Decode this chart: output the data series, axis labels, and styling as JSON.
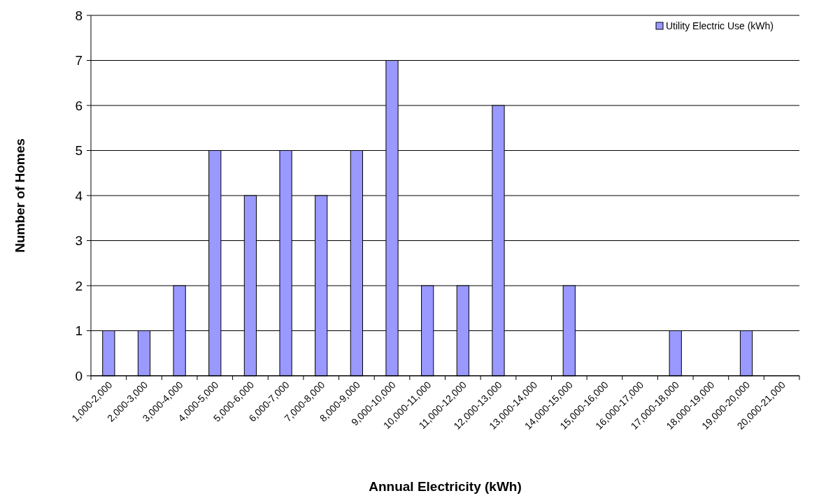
{
  "chart_data": {
    "type": "bar",
    "xlabel": "Annual Electricity (kWh)",
    "ylabel": "Number of Homes",
    "categories": [
      "1,000-2,000",
      "2,000-3,000",
      "3,000-4,000",
      "4,000-5,000",
      "5,000-6,000",
      "6,000-7,000",
      "7,000-8,000",
      "8,000-9,000",
      "9,000-10,000",
      "10,000-11,000",
      "11,000-12,000",
      "12,000-13,000",
      "13,000-14,000",
      "14,000-15,000",
      "15,000-16,000",
      "16,000-17,000",
      "17,000-18,000",
      "18,000-19,000",
      "19,000-20,000",
      "20,000-21,000"
    ],
    "series": [
      {
        "name": "Utility Electric Use (kWh)",
        "color": "#9999ff",
        "values": [
          1,
          1,
          2,
          5,
          4,
          5,
          4,
          5,
          7,
          2,
          2,
          6,
          0,
          2,
          0,
          0,
          1,
          0,
          1,
          0
        ]
      }
    ],
    "ylim": [
      0,
      8
    ],
    "yticks": [
      0,
      1,
      2,
      3,
      4,
      5,
      6,
      7,
      8
    ],
    "grid": "y",
    "legend": "top right"
  }
}
